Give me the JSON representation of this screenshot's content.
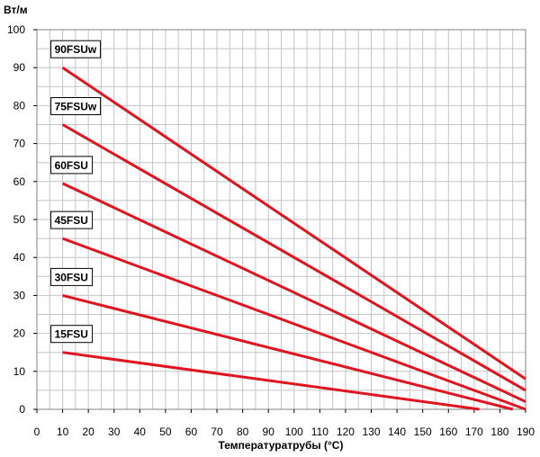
{
  "chart_data": {
    "type": "line",
    "title": "",
    "xlabel": "Температуратрубы (°C)",
    "ylabel": "Вт/м",
    "xlim": [
      0,
      190
    ],
    "ylim": [
      0,
      100
    ],
    "x_ticks": [
      0,
      10,
      20,
      30,
      40,
      50,
      60,
      70,
      80,
      90,
      100,
      110,
      120,
      130,
      140,
      150,
      160,
      170,
      180,
      190
    ],
    "y_ticks": [
      0,
      10,
      20,
      30,
      40,
      50,
      60,
      70,
      80,
      90,
      100
    ],
    "x_minor_step": 5,
    "y_minor_step": 5,
    "grid": true,
    "line_color": "#e0141e",
    "series": [
      {
        "name": "90FSUw",
        "x": [
          10,
          190
        ],
        "y": [
          90,
          8
        ]
      },
      {
        "name": "75FSUw",
        "x": [
          10,
          190
        ],
        "y": [
          75,
          5
        ]
      },
      {
        "name": "60FSU",
        "x": [
          10,
          190
        ],
        "y": [
          59.5,
          2
        ]
      },
      {
        "name": "45FSU",
        "x": [
          10,
          190
        ],
        "y": [
          45,
          0
        ]
      },
      {
        "name": "30FSU",
        "x": [
          10,
          185
        ],
        "y": [
          30,
          0
        ]
      },
      {
        "name": "15FSU",
        "x": [
          10,
          172
        ],
        "y": [
          15,
          0
        ]
      }
    ]
  }
}
